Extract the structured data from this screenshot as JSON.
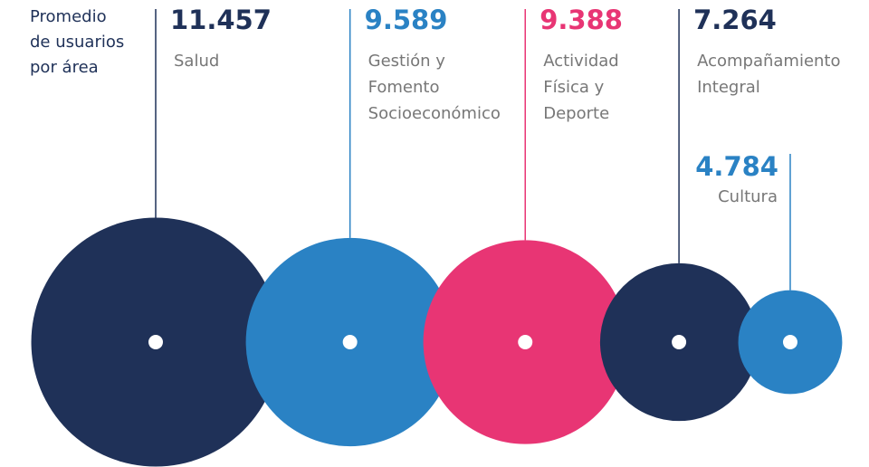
{
  "chart_data": {
    "type": "bubble",
    "title": "Promedio\nde usuarios\npor área",
    "categories": [
      "Salud",
      "Gestión y\nFomento\nSocioeconómico",
      "Actividad\nFísica y\nDeporte",
      "Acompañamiento\nIntegral",
      "Cultura"
    ],
    "values": [
      11457,
      9589,
      9388,
      7264,
      4784
    ],
    "value_labels": [
      "11.457",
      "9.589",
      "9.388",
      "7.264",
      "4.784"
    ],
    "colors": [
      "#1f3158",
      "#2a82c4",
      "#e83574",
      "#1f3158",
      "#2a82c4"
    ]
  }
}
